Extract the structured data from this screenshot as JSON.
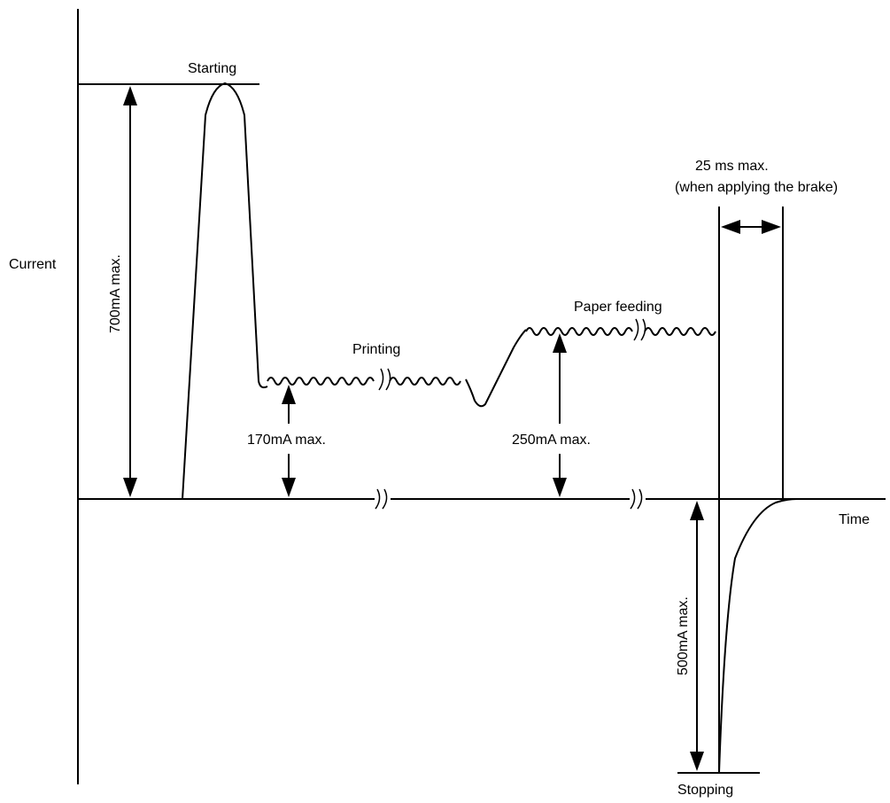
{
  "labels": {
    "current": "Current",
    "time": "Time",
    "starting": "Starting",
    "printing": "Printing",
    "paper_feeding": "Paper feeding",
    "stopping": "Stopping",
    "max_700": "700mA max.",
    "max_170": "170mA max.",
    "max_250": "250mA max.",
    "max_500": "500mA max.",
    "brake_time_line1": "25 ms max.",
    "brake_time_line2": "(when applying the brake)"
  }
}
